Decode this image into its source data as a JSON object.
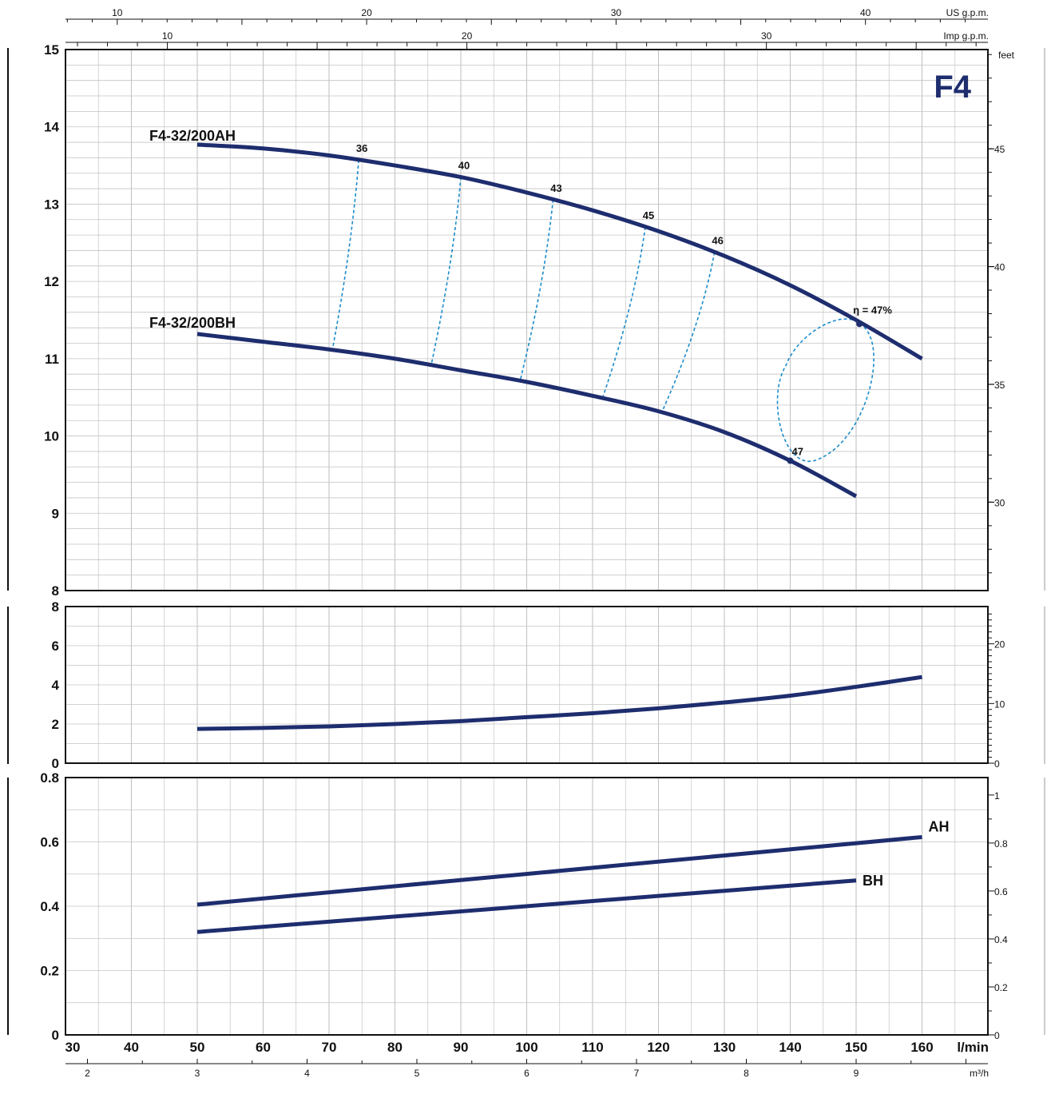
{
  "chart_data": [
    {
      "type": "line",
      "name": "head",
      "title": "F4",
      "x_unit": "l/min",
      "y_unit_left": "",
      "y_unit_right": "feet",
      "xlim": [
        30,
        170
      ],
      "ylim": [
        8,
        15
      ],
      "y_ticks": [
        "8",
        "9",
        "10",
        "11",
        "12",
        "13",
        "14",
        "15"
      ],
      "right_ticks": [
        "30",
        "35",
        "40",
        "45"
      ],
      "top_axes": [
        {
          "unit": "US g.p.m.",
          "ticks": [
            "10",
            "20",
            "30",
            "40"
          ]
        },
        {
          "unit": "Imp g.p.m.",
          "ticks": [
            "10",
            "20",
            "30"
          ]
        }
      ],
      "series": [
        {
          "name": "F4-32/200AH",
          "x": [
            50,
            60,
            70,
            80,
            90,
            100,
            110,
            120,
            130,
            140,
            150,
            160
          ],
          "y": [
            13.77,
            13.72,
            13.63,
            13.5,
            13.35,
            13.15,
            12.92,
            12.65,
            12.33,
            11.95,
            11.5,
            11.0
          ]
        },
        {
          "name": "F4-32/200BH",
          "x": [
            50,
            60,
            70,
            80,
            90,
            100,
            110,
            120,
            130,
            140,
            150
          ],
          "y": [
            11.32,
            11.22,
            11.12,
            11.0,
            10.85,
            10.7,
            10.52,
            10.32,
            10.05,
            9.68,
            9.22
          ]
        }
      ],
      "efficiency_labels": [
        "36",
        "40",
        "43",
        "45",
        "46",
        "47"
      ],
      "efficiency_points": [
        {
          "label": "36",
          "x": 74.5,
          "y": 13.55
        },
        {
          "label": "40",
          "x": 90,
          "y": 13.3
        },
        {
          "label": "43",
          "x": 104,
          "y": 12.97
        },
        {
          "label": "45",
          "x": 118,
          "y": 12.62
        },
        {
          "label": "46",
          "x": 128.5,
          "y": 12.35
        }
      ],
      "efficiency_max_label": "η = 47%",
      "efficiency_max_point": {
        "x": 150.5,
        "y": 11.45
      },
      "efficiency_bh_point": {
        "label": "47",
        "x": 140,
        "y": 9.68
      }
    },
    {
      "type": "line",
      "name": "npsh",
      "xlim": [
        30,
        170
      ],
      "ylim": [
        0,
        8
      ],
      "y_ticks": [
        "0",
        "2",
        "4",
        "6",
        "8"
      ],
      "right_ticks": [
        "0",
        "10",
        "20"
      ],
      "series": [
        {
          "name": "",
          "x": [
            50,
            60,
            70,
            80,
            90,
            100,
            110,
            120,
            130,
            140,
            150,
            160
          ],
          "y": [
            1.75,
            1.8,
            1.88,
            2.0,
            2.15,
            2.35,
            2.55,
            2.8,
            3.1,
            3.45,
            3.9,
            4.4
          ]
        }
      ]
    },
    {
      "type": "line",
      "name": "power",
      "xlim": [
        30,
        170
      ],
      "ylim": [
        0,
        0.8
      ],
      "y_ticks": [
        "0",
        "0.2",
        "0.4",
        "0.6",
        "0.8"
      ],
      "right_ticks": [
        "0",
        "0.2",
        "0.4",
        "0.6",
        "0.8",
        "1"
      ],
      "x_ticks": [
        "30",
        "40",
        "50",
        "60",
        "70",
        "80",
        "90",
        "100",
        "110",
        "120",
        "130",
        "140",
        "150",
        "160"
      ],
      "x_label": "l/min",
      "bottom_axis": {
        "unit": "m³/h",
        "ticks": [
          "2",
          "3",
          "4",
          "5",
          "6",
          "7",
          "8",
          "9"
        ]
      },
      "series": [
        {
          "name": "AH",
          "x": [
            50,
            160
          ],
          "y": [
            0.405,
            0.615
          ]
        },
        {
          "name": "BH",
          "x": [
            50,
            150
          ],
          "y": [
            0.32,
            0.48
          ]
        }
      ]
    }
  ],
  "colors": {
    "curve": "#1e2d6e",
    "efficiency": "#1a8ccc",
    "grid": "#c4c4c4",
    "axis": "#111111"
  }
}
